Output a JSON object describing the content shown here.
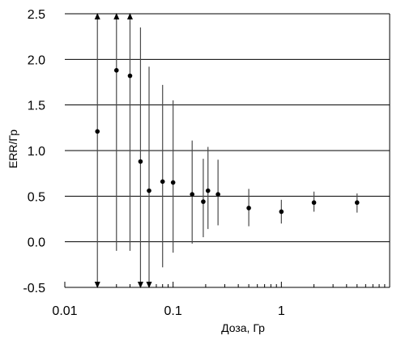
{
  "chart_data": {
    "type": "scatter",
    "title": "",
    "xlabel": "Доза, Гр",
    "ylabel": "ERR/Гр",
    "x_scale": "log",
    "xlim": [
      0.01,
      10
    ],
    "ylim": [
      -0.5,
      2.5
    ],
    "grid": "horizontal",
    "x_tick_labels": [
      "0.01",
      "0.1",
      "1"
    ],
    "y_tick_labels": [
      "2.5",
      "2.0",
      "1.5",
      "1.0",
      "0.5",
      "0.0",
      "-0.5"
    ],
    "points": [
      {
        "x": 0.02,
        "y": 1.21,
        "lower": -0.5,
        "upper": 2.5,
        "lower_arrow": true,
        "upper_arrow": true
      },
      {
        "x": 0.03,
        "y": 1.88,
        "lower": -0.1,
        "upper": 2.5,
        "lower_arrow": false,
        "upper_arrow": true
      },
      {
        "x": 0.04,
        "y": 1.82,
        "lower": -0.1,
        "upper": 2.5,
        "lower_arrow": false,
        "upper_arrow": true
      },
      {
        "x": 0.05,
        "y": 0.88,
        "lower": -0.5,
        "upper": 2.35,
        "lower_arrow": true,
        "upper_arrow": false
      },
      {
        "x": 0.06,
        "y": 0.56,
        "lower": -0.5,
        "upper": 1.92,
        "lower_arrow": true,
        "upper_arrow": false
      },
      {
        "x": 0.08,
        "y": 0.66,
        "lower": -0.28,
        "upper": 1.72,
        "lower_arrow": false,
        "upper_arrow": false
      },
      {
        "x": 0.1,
        "y": 0.65,
        "lower": -0.12,
        "upper": 1.55,
        "lower_arrow": false,
        "upper_arrow": false
      },
      {
        "x": 0.15,
        "y": 0.52,
        "lower": -0.02,
        "upper": 1.11,
        "lower_arrow": false,
        "upper_arrow": false
      },
      {
        "x": 0.19,
        "y": 0.44,
        "lower": 0.05,
        "upper": 0.91,
        "lower_arrow": false,
        "upper_arrow": false
      },
      {
        "x": 0.21,
        "y": 0.56,
        "lower": 0.14,
        "upper": 1.04,
        "lower_arrow": false,
        "upper_arrow": false
      },
      {
        "x": 0.26,
        "y": 0.52,
        "lower": 0.18,
        "upper": 0.9,
        "lower_arrow": false,
        "upper_arrow": false
      },
      {
        "x": 0.5,
        "y": 0.37,
        "lower": 0.17,
        "upper": 0.58,
        "lower_arrow": false,
        "upper_arrow": false
      },
      {
        "x": 1.0,
        "y": 0.33,
        "lower": 0.2,
        "upper": 0.46,
        "lower_arrow": false,
        "upper_arrow": false
      },
      {
        "x": 2.0,
        "y": 0.43,
        "lower": 0.33,
        "upper": 0.55,
        "lower_arrow": false,
        "upper_arrow": false
      },
      {
        "x": 5.0,
        "y": 0.43,
        "lower": 0.32,
        "upper": 0.53,
        "lower_arrow": false,
        "upper_arrow": false
      }
    ],
    "colors": {
      "grid": "#000000",
      "marker": "#000000",
      "errorbar": "#4a4a4a"
    }
  }
}
